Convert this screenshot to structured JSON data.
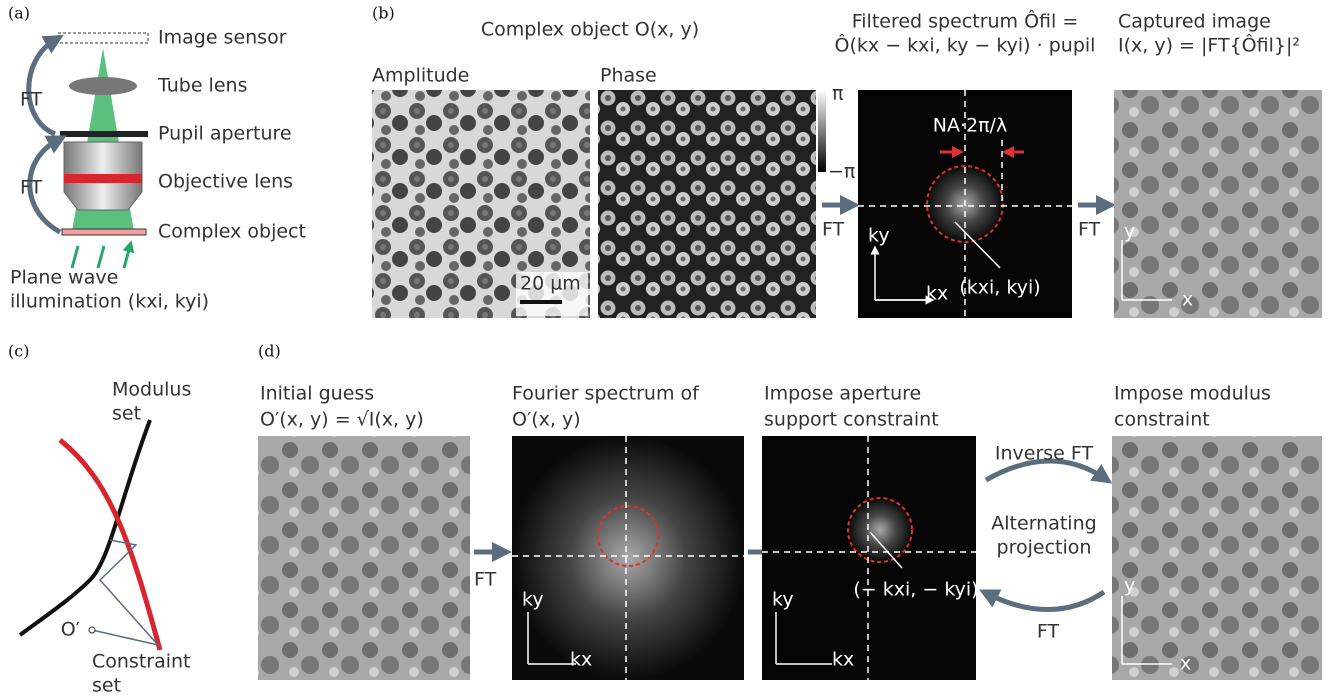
{
  "panel_a": {
    "label": "(a)",
    "components": [
      "Image sensor",
      "Tube lens",
      "Pupil aperture",
      "Objective lens",
      "Complex object"
    ],
    "ft_labels": [
      "FT",
      "FT"
    ],
    "illumination": [
      "Plane wave",
      "illumination (kxi, kyi)"
    ]
  },
  "panel_b": {
    "label": "(b)",
    "title": "Complex object O(x, y)",
    "amplitude": "Amplitude",
    "phase": "Phase",
    "scale_bar": "20 µm",
    "phase_max": "π",
    "phase_min": "−π",
    "ft_left": "FT",
    "spectrum_title": [
      "Filtered spectrum Ôfil =",
      "Ô(kx − kxi, ky − kyi) · pupil"
    ],
    "na_label": "NA·2π/λ",
    "shift_label": "(kxi, kyi)",
    "kx": "kx",
    "ky": "ky",
    "ft_right": "FT",
    "captured_title": [
      "Captured image",
      "I(x, y) = |FT{Ôfil}|²"
    ],
    "x": "x",
    "y": "y"
  },
  "panel_c": {
    "label": "(c)",
    "modulus": [
      "Modulus",
      "set"
    ],
    "origin": "O′",
    "constraint": [
      "Constraint",
      "set"
    ]
  },
  "panel_d": {
    "label": "(d)",
    "initial": [
      "Initial guess",
      "O′(x, y) = √I(x, y)"
    ],
    "ft1": "FT",
    "fourier": [
      "Fourier spectrum of",
      "O′(x, y)"
    ],
    "ft2_kx": "kx",
    "ft2_ky": "ky",
    "aperture": [
      "Impose aperture",
      "support constraint"
    ],
    "shift_label": "(− kxi, − kyi)",
    "kx": "kx",
    "ky": "ky",
    "inverse_ft": "Inverse FT",
    "alternating": [
      "Alternating",
      "projection"
    ],
    "ft_back": "FT",
    "modulus": [
      "Impose modulus",
      "constraint"
    ],
    "x": "x",
    "y": "y"
  }
}
